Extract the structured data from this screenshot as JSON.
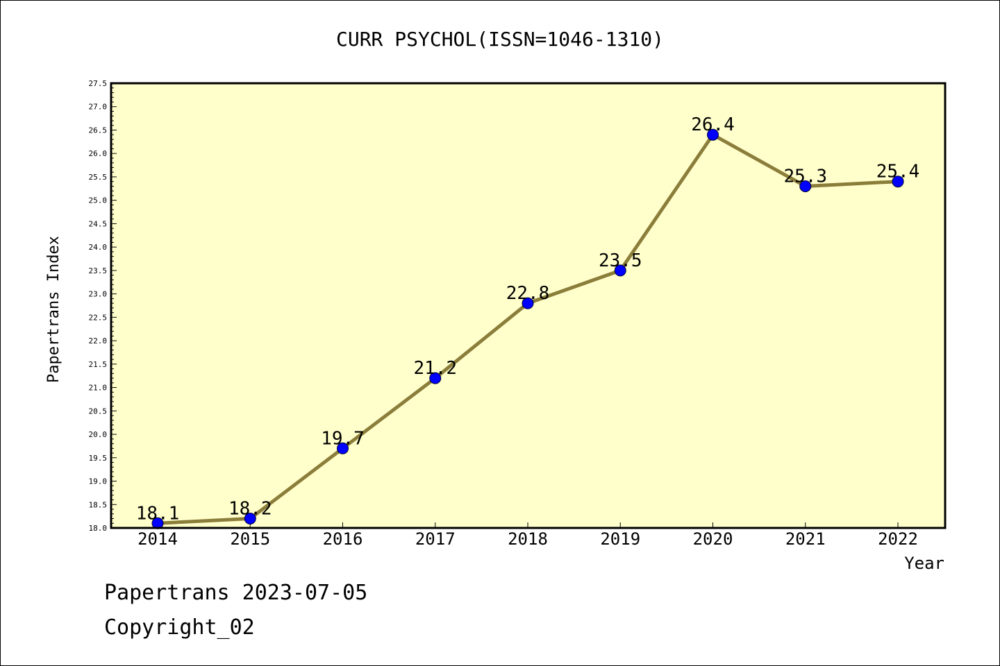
{
  "chart_data": {
    "type": "line",
    "title": "CURR PSYCHOL(ISSN=1046-1310)",
    "xlabel": "Year",
    "ylabel": "Papertrans Index",
    "ylim": [
      18.0,
      27.5
    ],
    "yticks": [
      "18.0",
      "18.5",
      "19.0",
      "19.5",
      "20.0",
      "20.5",
      "21.0",
      "21.5",
      "22.0",
      "22.5",
      "23.0",
      "23.5",
      "24.0",
      "24.5",
      "25.0",
      "25.5",
      "26.0",
      "26.5",
      "27.0",
      "27.5"
    ],
    "categories": [
      "2014",
      "2015",
      "2016",
      "2017",
      "2018",
      "2019",
      "2020",
      "2021",
      "2022"
    ],
    "values": [
      18.1,
      18.2,
      19.7,
      21.2,
      22.8,
      23.5,
      26.4,
      25.3,
      25.4
    ],
    "data_labels": [
      "18.1",
      "18.2",
      "19.7",
      "21.2",
      "22.8",
      "23.5",
      "26.4",
      "25.3",
      "25.4"
    ],
    "grid": false,
    "colors": {
      "plot_bg": "#FFFFCC",
      "line": "#8B7D3A",
      "marker": "#0000FF"
    }
  },
  "footer": {
    "line1": "Papertrans 2023-07-05",
    "line2": "Copyright_02"
  }
}
